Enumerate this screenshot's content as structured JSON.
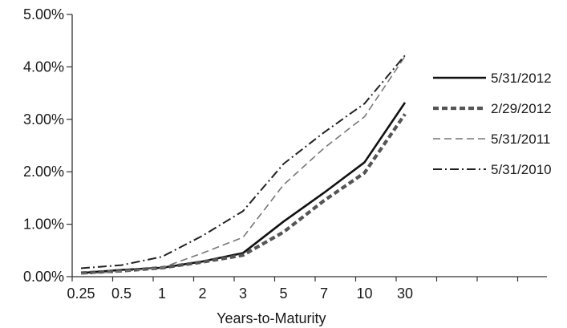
{
  "chart_data": {
    "type": "line",
    "title": "",
    "xlabel": "Years-to-Maturity",
    "ylabel": "",
    "categories": [
      "0.25",
      "0.5",
      "1",
      "2",
      "3",
      "5",
      "7",
      "10",
      "30"
    ],
    "ylim": [
      0,
      5
    ],
    "y_ticks": [
      "0.00%",
      "1.00%",
      "2.00%",
      "3.00%",
      "4.00%",
      "5.00%"
    ],
    "grid": false,
    "legend_position": "right",
    "series": [
      {
        "name": "5/31/2012",
        "style": "solid",
        "color": "#111111",
        "values": [
          0.07,
          0.13,
          0.17,
          0.29,
          0.45,
          1.05,
          1.6,
          2.18,
          3.32
        ]
      },
      {
        "name": "2/29/2012",
        "style": "heavy-dashed",
        "color": "#555555",
        "values": [
          0.07,
          0.11,
          0.17,
          0.28,
          0.41,
          0.85,
          1.45,
          1.98,
          3.1
        ]
      },
      {
        "name": "5/31/2011",
        "style": "light-dashed",
        "color": "#777777",
        "values": [
          0.05,
          0.1,
          0.17,
          0.45,
          0.75,
          1.75,
          2.45,
          3.05,
          4.2
        ]
      },
      {
        "name": "5/31/2010",
        "style": "dash-dot",
        "color": "#222222",
        "values": [
          0.16,
          0.22,
          0.38,
          0.78,
          1.25,
          2.15,
          2.75,
          3.3,
          4.22
        ]
      }
    ]
  }
}
